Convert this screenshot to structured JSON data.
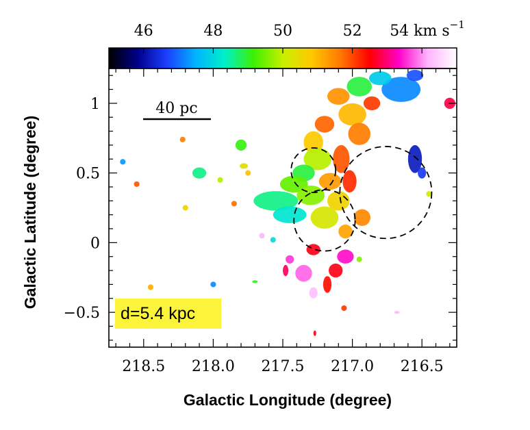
{
  "chart_data": {
    "type": "heatmap",
    "title": "",
    "xlabel": "Galactic Longitude (degree)",
    "ylabel": "Galactic Latitude (degree)",
    "xlim": [
      218.75,
      216.25
    ],
    "ylim": [
      -0.75,
      1.25
    ],
    "x_ticks": [
      {
        "value": 218.5,
        "label": "218.5"
      },
      {
        "value": 218.0,
        "label": "218.0"
      },
      {
        "value": 217.5,
        "label": "217.5"
      },
      {
        "value": 217.0,
        "label": "217.0"
      },
      {
        "value": 216.5,
        "label": "216.5"
      }
    ],
    "y_ticks": [
      {
        "value": 1.0,
        "label": "1"
      },
      {
        "value": 0.5,
        "label": "0.5"
      },
      {
        "value": 0.0,
        "label": "0"
      },
      {
        "value": -0.5,
        "label": "−0.5"
      }
    ],
    "colorbar": {
      "range": [
        45,
        55
      ],
      "unit": "km s⁻¹",
      "ticks": [
        {
          "value": 46,
          "label": "46"
        },
        {
          "value": 48,
          "label": "48"
        },
        {
          "value": 50,
          "label": "50"
        },
        {
          "value": 52,
          "label": "52"
        },
        {
          "value": 54,
          "label": "54 km s"
        }
      ],
      "unit_exponent": "−1",
      "colors": [
        "#000000",
        "#00008b",
        "#1c3fff",
        "#00b4ff",
        "#00f0c8",
        "#3cf000",
        "#c8f000",
        "#ffc800",
        "#ff7800",
        "#ff0000",
        "#ff00c8",
        "#ffb4ff",
        "#ffffff"
      ]
    },
    "scale_bar": {
      "label": "40 pc",
      "length_deg": 0.42
    },
    "distance_label": "d=5.4 kpc",
    "circles": [
      {
        "name": "circle-north",
        "l": 217.28,
        "b": 0.52,
        "r": 0.16
      },
      {
        "name": "circle-south",
        "l": 217.2,
        "b": 0.16,
        "r": 0.22
      },
      {
        "name": "circle-east",
        "l": 216.76,
        "b": 0.36,
        "r": 0.33
      }
    ],
    "clumps": [
      {
        "l": 216.95,
        "b": 1.12,
        "rl": 0.09,
        "rb": 0.07,
        "v": 48.9
      },
      {
        "l": 216.65,
        "b": 1.1,
        "rl": 0.14,
        "rb": 0.09,
        "v": 47.2
      },
      {
        "l": 216.8,
        "b": 1.18,
        "rl": 0.08,
        "rb": 0.05,
        "v": 47.8
      },
      {
        "l": 216.55,
        "b": 1.2,
        "rl": 0.06,
        "rb": 0.04,
        "v": 46.8
      },
      {
        "l": 217.1,
        "b": 1.05,
        "rl": 0.08,
        "rb": 0.06,
        "v": 51.4
      },
      {
        "l": 216.86,
        "b": 1.0,
        "rl": 0.06,
        "rb": 0.05,
        "v": 52.1
      },
      {
        "l": 217.0,
        "b": 0.92,
        "rl": 0.1,
        "rb": 0.08,
        "v": 51.0
      },
      {
        "l": 216.3,
        "b": 1.0,
        "rl": 0.04,
        "rb": 0.04,
        "v": 52.8
      },
      {
        "l": 217.2,
        "b": 0.85,
        "rl": 0.07,
        "rb": 0.06,
        "v": 51.8
      },
      {
        "l": 217.28,
        "b": 0.72,
        "rl": 0.07,
        "rb": 0.08,
        "v": 50.8
      },
      {
        "l": 217.25,
        "b": 0.6,
        "rl": 0.1,
        "rb": 0.08,
        "v": 49.9
      },
      {
        "l": 217.35,
        "b": 0.5,
        "rl": 0.08,
        "rb": 0.06,
        "v": 48.9
      },
      {
        "l": 217.42,
        "b": 0.42,
        "rl": 0.1,
        "rb": 0.06,
        "v": 49.4
      },
      {
        "l": 217.55,
        "b": 0.3,
        "rl": 0.16,
        "rb": 0.07,
        "v": 48.6
      },
      {
        "l": 217.45,
        "b": 0.2,
        "rl": 0.12,
        "rb": 0.06,
        "v": 48.2
      },
      {
        "l": 217.3,
        "b": 0.34,
        "rl": 0.1,
        "rb": 0.07,
        "v": 49.6
      },
      {
        "l": 217.16,
        "b": 0.44,
        "rl": 0.08,
        "rb": 0.06,
        "v": 51.3
      },
      {
        "l": 217.08,
        "b": 0.6,
        "rl": 0.06,
        "rb": 0.1,
        "v": 51.9
      },
      {
        "l": 217.02,
        "b": 0.44,
        "rl": 0.05,
        "rb": 0.08,
        "v": 52.2
      },
      {
        "l": 216.95,
        "b": 0.78,
        "rl": 0.08,
        "rb": 0.08,
        "v": 51.6
      },
      {
        "l": 217.2,
        "b": 0.18,
        "rl": 0.1,
        "rb": 0.08,
        "v": 50.2
      },
      {
        "l": 217.1,
        "b": 0.3,
        "rl": 0.08,
        "rb": 0.07,
        "v": 50.6
      },
      {
        "l": 216.93,
        "b": 0.18,
        "rl": 0.06,
        "rb": 0.06,
        "v": 51.5
      },
      {
        "l": 217.05,
        "b": 0.08,
        "rl": 0.05,
        "rb": 0.05,
        "v": 51.2
      },
      {
        "l": 217.28,
        "b": -0.05,
        "rl": 0.05,
        "rb": 0.04,
        "v": 52.6
      },
      {
        "l": 217.05,
        "b": -0.1,
        "rl": 0.06,
        "rb": 0.05,
        "v": 53.4
      },
      {
        "l": 217.35,
        "b": -0.22,
        "rl": 0.06,
        "rb": 0.06,
        "v": 53.8
      },
      {
        "l": 217.12,
        "b": -0.2,
        "rl": 0.05,
        "rb": 0.05,
        "v": 52.6
      },
      {
        "l": 217.18,
        "b": -0.3,
        "rl": 0.03,
        "rb": 0.06,
        "v": 52.4
      },
      {
        "l": 217.28,
        "b": -0.36,
        "rl": 0.03,
        "rb": 0.04,
        "v": 54.3
      },
      {
        "l": 217.45,
        "b": -0.12,
        "rl": 0.03,
        "rb": 0.03,
        "v": 53.6
      },
      {
        "l": 217.48,
        "b": -0.2,
        "rl": 0.02,
        "rb": 0.04,
        "v": 52.9
      },
      {
        "l": 217.65,
        "b": 0.05,
        "rl": 0.02,
        "rb": 0.02,
        "v": 54.2
      },
      {
        "l": 216.55,
        "b": 0.6,
        "rl": 0.05,
        "rb": 0.1,
        "v": 46.2
      },
      {
        "l": 216.5,
        "b": 0.5,
        "rl": 0.03,
        "rb": 0.04,
        "v": 46.6
      },
      {
        "l": 216.45,
        "b": 0.35,
        "rl": 0.02,
        "rb": 0.02,
        "v": 50.1
      },
      {
        "l": 218.1,
        "b": 0.5,
        "rl": 0.05,
        "rb": 0.04,
        "v": 48.6
      },
      {
        "l": 217.8,
        "b": 0.7,
        "rl": 0.04,
        "rb": 0.04,
        "v": 49.1
      },
      {
        "l": 217.78,
        "b": 0.55,
        "rl": 0.03,
        "rb": 0.02,
        "v": 50.4
      },
      {
        "l": 217.95,
        "b": 0.45,
        "rl": 0.02,
        "rb": 0.02,
        "v": 49.9
      },
      {
        "l": 217.75,
        "b": 0.5,
        "rl": 0.02,
        "rb": 0.02,
        "v": 50.9
      },
      {
        "l": 218.2,
        "b": 0.25,
        "rl": 0.02,
        "rb": 0.02,
        "v": 50.6
      },
      {
        "l": 217.85,
        "b": 0.28,
        "rl": 0.02,
        "rb": 0.02,
        "v": 51.7
      },
      {
        "l": 218.55,
        "b": 0.42,
        "rl": 0.02,
        "rb": 0.02,
        "v": 51.9
      },
      {
        "l": 218.22,
        "b": 0.74,
        "rl": 0.02,
        "rb": 0.02,
        "v": 51.6
      },
      {
        "l": 218.65,
        "b": 0.58,
        "rl": 0.02,
        "rb": 0.02,
        "v": 47.3
      },
      {
        "l": 217.57,
        "b": 0.02,
        "rl": 0.02,
        "rb": 0.02,
        "v": 48.1
      },
      {
        "l": 216.95,
        "b": -0.12,
        "rl": 0.02,
        "rb": 0.02,
        "v": 49.6
      },
      {
        "l": 216.68,
        "b": -0.5,
        "rl": 0.02,
        "rb": 0.01,
        "v": 54.2
      },
      {
        "l": 217.06,
        "b": -0.47,
        "rl": 0.02,
        "rb": 0.02,
        "v": 52.1
      },
      {
        "l": 217.27,
        "b": -0.65,
        "rl": 0.01,
        "rb": 0.02,
        "v": 52.6
      },
      {
        "l": 218.0,
        "b": -0.3,
        "rl": 0.02,
        "rb": 0.02,
        "v": 47.2
      },
      {
        "l": 217.7,
        "b": -0.28,
        "rl": 0.02,
        "rb": 0.01,
        "v": 49.0
      },
      {
        "l": 218.45,
        "b": -0.32,
        "rl": 0.02,
        "rb": 0.02,
        "v": 51.1
      }
    ]
  }
}
